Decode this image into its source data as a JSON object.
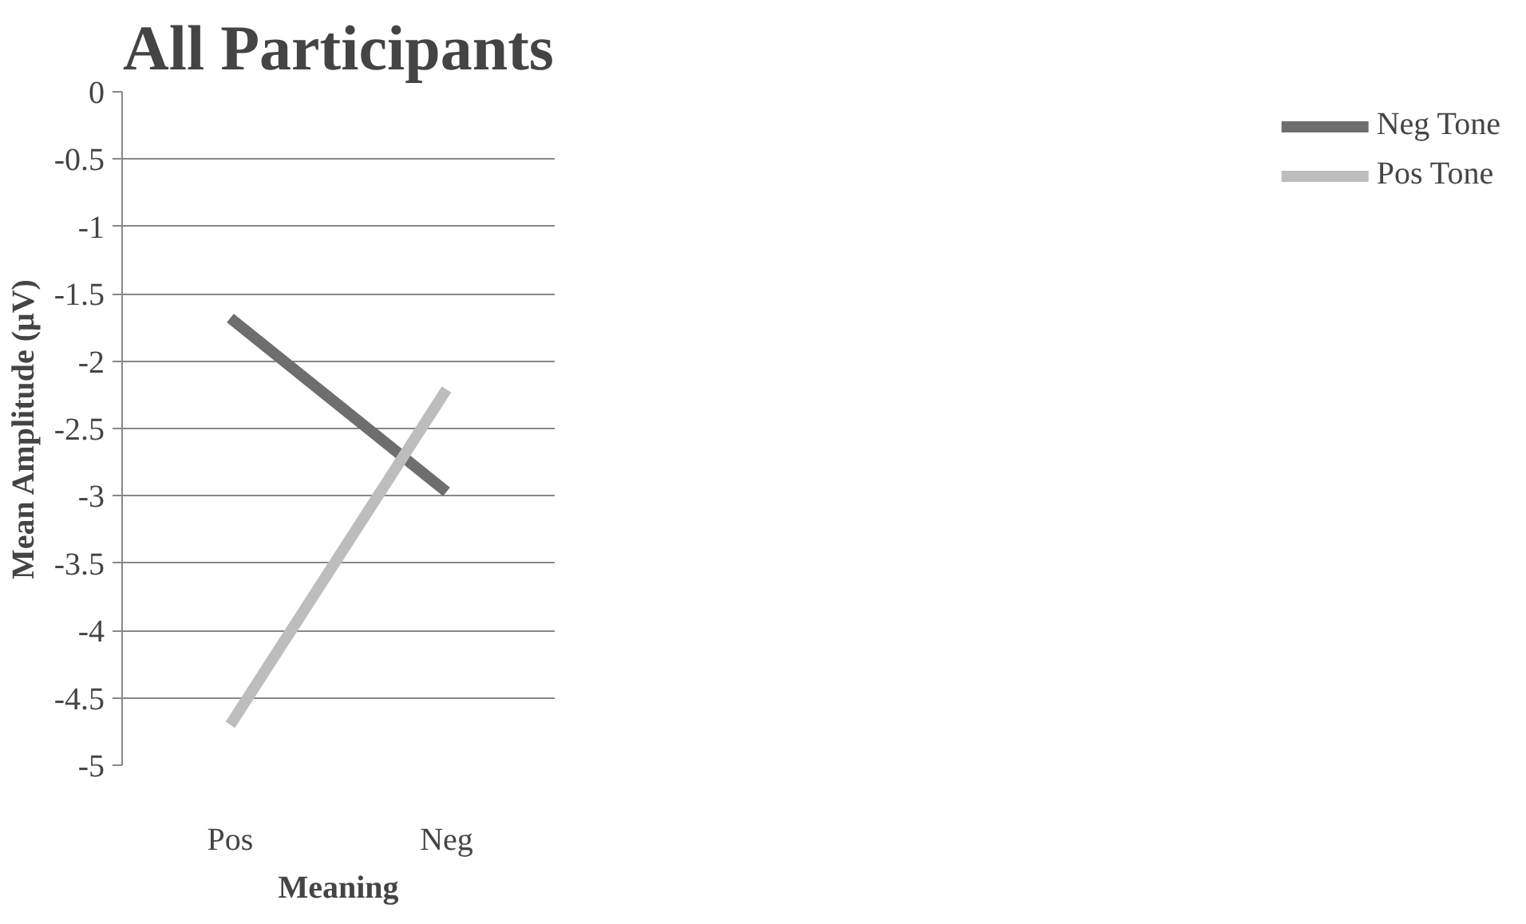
{
  "chart_data": {
    "type": "line",
    "title": "All Participants",
    "xlabel": "Meaning",
    "ylabel": "Mean Amplitude (μV)",
    "categories": [
      "Pos",
      "Neg"
    ],
    "series": [
      {
        "name": "Neg Tone",
        "color": "#6e6e6e",
        "values": [
          -1.68,
          -2.97
        ]
      },
      {
        "name": "Pos Tone",
        "color": "#bdbdbd",
        "values": [
          -4.7,
          -2.21
        ]
      }
    ],
    "ylim": [
      -5,
      0
    ],
    "yticks": [
      0,
      -0.5,
      -1,
      -1.5,
      -2,
      -2.5,
      -3,
      -3.5,
      -4,
      -4.5,
      -5
    ],
    "grid": "y",
    "legend": "right",
    "marker": "none",
    "line_style": "solid"
  }
}
